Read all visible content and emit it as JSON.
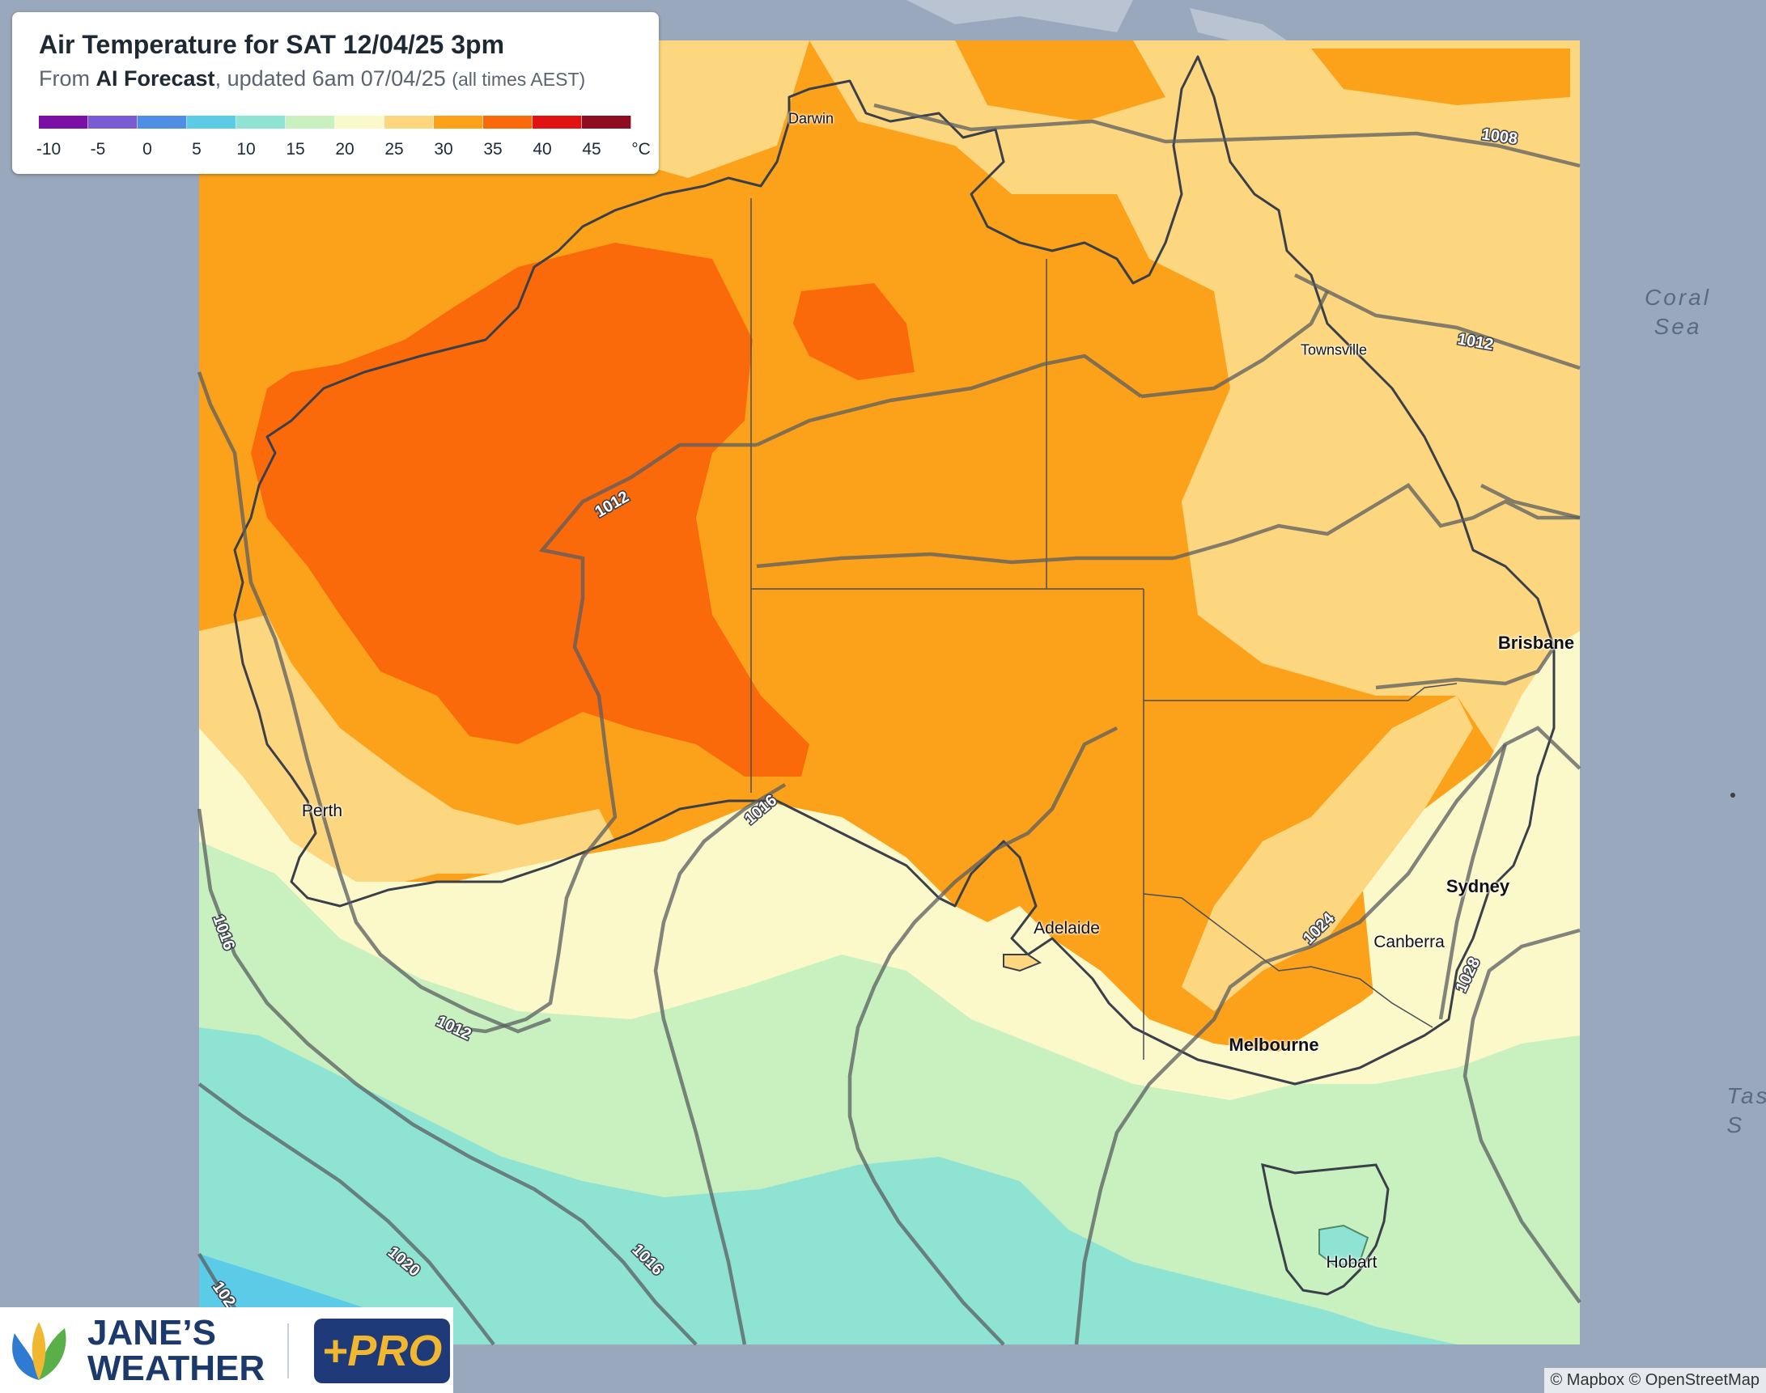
{
  "legend": {
    "title": "Air Temperature for SAT 12/04/25 3pm",
    "source_prefix": "From ",
    "source_model": "AI Forecast",
    "source_updated": ", updated 6am 07/04/25 ",
    "source_tz": "(all times AEST)",
    "scale_labels": [
      "-10",
      "-5",
      "0",
      "5",
      "10",
      "15",
      "20",
      "25",
      "30",
      "35",
      "40",
      "45",
      "°C"
    ],
    "scale_colors": [
      "#7b0fa6",
      "#7b5bd4",
      "#4f8fe3",
      "#5ccbe8",
      "#8fe3d2",
      "#c9f1c0",
      "#fbf8c9",
      "#fcd77f",
      "#fba21a",
      "#fb6a0a",
      "#e11212",
      "#8e0d20"
    ]
  },
  "cities": {
    "darwin": "Darwin",
    "townsville": "Townsville",
    "brisbane": "Brisbane",
    "sydney": "Sydney",
    "canberra": "Canberra",
    "melbourne": "Melbourne",
    "hobart": "Hobart",
    "adelaide": "Adelaide",
    "perth": "Perth"
  },
  "seas": {
    "coral_line1": "Coral",
    "coral_line2": "Sea",
    "tasman_line1": "Tas",
    "tasman_line2": "S"
  },
  "isobars": {
    "l1008": "1008",
    "l1012_qld": "1012",
    "l1012_wa": "1012",
    "l1016_sa": "1016",
    "l1016_w": "1016",
    "l1012_s": "1012",
    "l1024": "1024",
    "l1028": "1028",
    "l1020": "1020",
    "l1016_sw": "1016",
    "l102": "102"
  },
  "brand": {
    "name_line1": "JANE’S",
    "name_line2": "WEATHER",
    "badge": "+PRO"
  },
  "attribution": "© Mapbox © OpenStreetMap"
}
